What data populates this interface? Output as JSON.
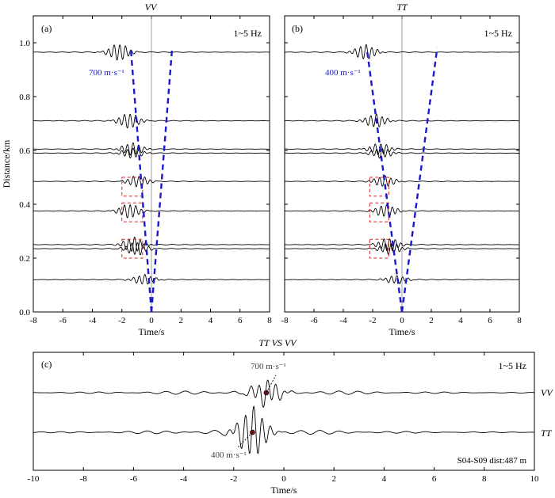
{
  "chart_data": [
    {
      "id": "a",
      "type": "line",
      "panel_label": "(a)",
      "title": "VV",
      "frequency_band": "1~5 Hz",
      "xlabel": "Time/s",
      "ylabel": "Distance/km",
      "xlim": [
        -8,
        8
      ],
      "ylim": [
        0,
        1.1
      ],
      "xticks": [
        -8,
        -6,
        -4,
        -2,
        0,
        2,
        4,
        6,
        8
      ],
      "yticks": [
        0.0,
        0.2,
        0.4,
        0.6,
        0.8,
        1.0
      ],
      "ytick_labels": [
        "0.0",
        "0.2",
        "0.4",
        "0.6",
        "0.8",
        "1.0"
      ],
      "trace_distances_km": [
        0.965,
        0.71,
        0.605,
        0.59,
        0.485,
        0.375,
        0.25,
        0.235,
        0.12
      ],
      "trace_peak_times_s": [
        -2.2,
        -1.5,
        -1.3,
        -1.3,
        -0.9,
        -1.5,
        -1.2,
        -1.0,
        -0.5
      ],
      "trace_amplitudes": [
        1.0,
        0.9,
        0.75,
        0.6,
        0.7,
        0.85,
        0.9,
        0.8,
        0.6
      ],
      "velocity_label": "700 m·s⁻¹",
      "velocity_lines": [
        {
          "x": [
            0,
            -1.4
          ],
          "y": [
            0,
            0.98
          ]
        },
        {
          "x": [
            0,
            1.4
          ],
          "y": [
            0,
            0.98
          ]
        }
      ],
      "highlight_boxes": [
        {
          "x": [
            -2.0,
            -0.6
          ],
          "y": [
            0.43,
            0.5
          ]
        },
        {
          "x": [
            -2.0,
            -0.6
          ],
          "y": [
            0.335,
            0.405
          ]
        },
        {
          "x": [
            -2.0,
            -0.6
          ],
          "y": [
            0.2,
            0.27
          ]
        }
      ]
    },
    {
      "id": "b",
      "type": "line",
      "panel_label": "(b)",
      "title": "TT",
      "frequency_band": "1~5 Hz",
      "xlabel": "Time/s",
      "ylabel": "",
      "xlim": [
        -8,
        8
      ],
      "ylim": [
        0,
        1.1
      ],
      "xticks": [
        -8,
        -6,
        -4,
        -2,
        0,
        2,
        4,
        6,
        8
      ],
      "yticks": [
        0.0,
        0.2,
        0.4,
        0.6,
        0.8,
        1.0
      ],
      "ytick_labels": [
        "0.0",
        "0.2",
        "0.4",
        "0.6",
        "0.8",
        "1.0"
      ],
      "trace_distances_km": [
        0.965,
        0.71,
        0.605,
        0.59,
        0.485,
        0.375,
        0.25,
        0.235,
        0.12
      ],
      "trace_peak_times_s": [
        -2.5,
        -1.8,
        -1.5,
        -1.4,
        -1.2,
        -1.1,
        -0.9,
        -0.8,
        -0.4
      ],
      "trace_amplitudes": [
        0.9,
        0.8,
        0.7,
        0.6,
        0.65,
        0.75,
        0.8,
        0.7,
        0.5
      ],
      "velocity_label": "400 m·s⁻¹",
      "velocity_lines": [
        {
          "x": [
            0,
            -2.4
          ],
          "y": [
            0,
            0.98
          ]
        },
        {
          "x": [
            0,
            2.4
          ],
          "y": [
            0,
            0.98
          ]
        }
      ],
      "highlight_boxes": [
        {
          "x": [
            -2.2,
            -0.9
          ],
          "y": [
            0.43,
            0.5
          ]
        },
        {
          "x": [
            -2.2,
            -0.9
          ],
          "y": [
            0.335,
            0.405
          ]
        },
        {
          "x": [
            -2.2,
            -0.9
          ],
          "y": [
            0.2,
            0.27
          ]
        }
      ]
    },
    {
      "id": "c",
      "type": "line",
      "panel_label": "(c)",
      "title": "TT VS VV",
      "frequency_band": "1~5 Hz",
      "xlabel": "Time/s",
      "ylabel": "",
      "xlim": [
        -10,
        10
      ],
      "xticks": [
        -10,
        -8,
        -6,
        -4,
        -2,
        0,
        2,
        4,
        6,
        8,
        10
      ],
      "series": [
        {
          "name": "VV",
          "peak_time_s": -0.7,
          "amplitude": 0.5,
          "marker_time_s": -0.7,
          "annotation": "700 m·s⁻¹"
        },
        {
          "name": "TT",
          "peak_time_s": -1.25,
          "amplitude": 1.0,
          "marker_time_s": -1.25,
          "annotation": "400 m·s⁻¹"
        }
      ],
      "annotation": "S04-S09 dist:487 m"
    }
  ]
}
